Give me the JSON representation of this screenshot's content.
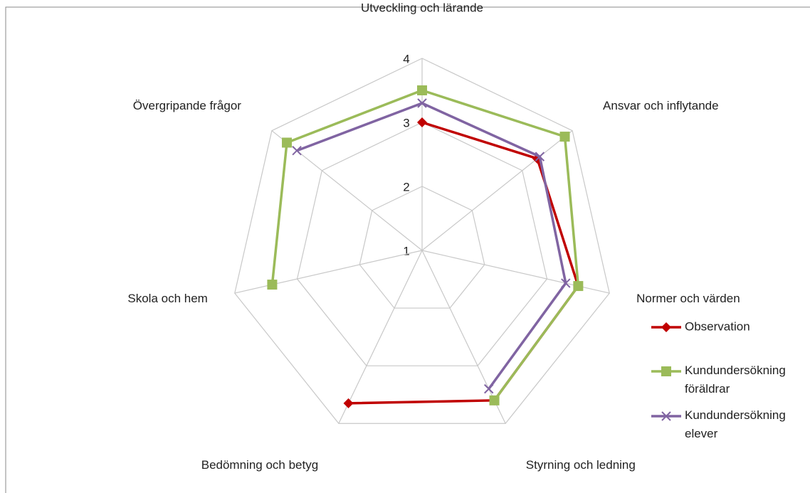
{
  "chart_data": {
    "type": "radar",
    "categories": [
      "Utveckling och lärande",
      "Ansvar och inflytande",
      "Normer och värden",
      "Styrning och ledning",
      "Bedömning och betyg",
      "Skola och hem",
      "Övergripande frågor"
    ],
    "series": [
      {
        "name": "Observation",
        "color": "#c00000",
        "marker": "diamond",
        "values": [
          3.0,
          3.3,
          3.5,
          3.6,
          3.65,
          null,
          null
        ]
      },
      {
        "name": "Kundundersökning föräldrar",
        "color": "#9bbb59",
        "marker": "square",
        "values": [
          3.5,
          3.85,
          3.5,
          3.6,
          null,
          3.4,
          3.7
        ]
      },
      {
        "name": "Kundundersökning elever",
        "color": "#8064a2",
        "marker": "x",
        "values": [
          3.3,
          3.35,
          3.3,
          3.4,
          null,
          null,
          3.5
        ]
      }
    ],
    "ylim": [
      1,
      4
    ],
    "yticks": [
      1,
      2,
      3,
      4
    ],
    "grid": true,
    "legend": "right"
  }
}
